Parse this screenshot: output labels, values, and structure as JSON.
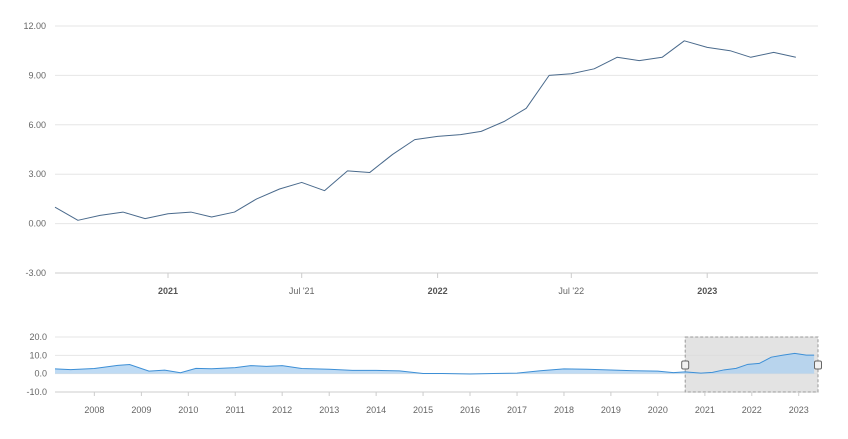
{
  "colors": {
    "main_line": "#4a6a8c",
    "grid": "#e6e6e6",
    "nav_fill": "#a9cff0",
    "nav_line": "#3d8fd6",
    "mask_fill": "#dcdcdc",
    "mask_border": "#999999"
  },
  "chart_data": [
    {
      "type": "line",
      "x_type": "datetime",
      "ylim": [
        -3,
        12
      ],
      "yticks": [
        "12.00",
        "9.00",
        "6.00",
        "3.00",
        "0.00",
        "-3.00"
      ],
      "xticks": [
        {
          "date": "2021-01-01",
          "label": "2021",
          "bold": true
        },
        {
          "date": "2021-07-01",
          "label": "Jul '21",
          "bold": false
        },
        {
          "date": "2022-01-01",
          "label": "2022",
          "bold": true
        },
        {
          "date": "2022-07-01",
          "label": "Jul '22",
          "bold": false
        },
        {
          "date": "2023-01-01",
          "label": "2023",
          "bold": true
        }
      ],
      "xlim": [
        "2020-08-01",
        "2023-05-31"
      ],
      "grid": true,
      "series": [
        {
          "x": [
            "2020-08-01",
            "2020-09-01",
            "2020-10-01",
            "2020-11-01",
            "2020-12-01",
            "2021-01-01",
            "2021-02-01",
            "2021-03-01",
            "2021-04-01",
            "2021-05-01",
            "2021-06-01",
            "2021-07-01",
            "2021-08-01",
            "2021-09-01",
            "2021-10-01",
            "2021-11-01",
            "2021-12-01",
            "2022-01-01",
            "2022-02-01",
            "2022-03-01",
            "2022-04-01",
            "2022-05-01",
            "2022-06-01",
            "2022-07-01",
            "2022-08-01",
            "2022-09-01",
            "2022-10-01",
            "2022-11-01",
            "2022-12-01",
            "2023-01-01",
            "2023-02-01",
            "2023-03-01",
            "2023-04-01",
            "2023-05-01"
          ],
          "values": [
            1.0,
            0.2,
            0.5,
            0.7,
            0.3,
            0.6,
            0.7,
            0.4,
            0.7,
            1.5,
            2.1,
            2.5,
            2.0,
            3.2,
            3.1,
            4.2,
            5.1,
            5.3,
            5.4,
            5.6,
            6.2,
            7.0,
            9.0,
            9.1,
            9.4,
            10.1,
            9.9,
            10.1,
            11.1,
            10.7,
            10.5,
            10.1,
            10.4,
            10.1
          ]
        }
      ]
    },
    {
      "type": "area",
      "x_type": "datetime",
      "role": "navigator",
      "ylim": [
        -10,
        20
      ],
      "yticks": [
        "20.0",
        "10.0",
        "0.0",
        "-10.0"
      ],
      "xticks": [
        "2008",
        "2009",
        "2010",
        "2011",
        "2012",
        "2013",
        "2014",
        "2015",
        "2016",
        "2017",
        "2018",
        "2019",
        "2020",
        "2021",
        "2022",
        "2023"
      ],
      "xlim": [
        "2007-03-01",
        "2023-05-31"
      ],
      "selection": [
        "2020-08-01",
        "2023-05-31"
      ],
      "series": [
        {
          "x": [
            "2007-03-01",
            "2007-07-01",
            "2008-01-01",
            "2008-07-01",
            "2008-10-01",
            "2009-03-01",
            "2009-07-01",
            "2009-11-01",
            "2010-03-01",
            "2010-07-01",
            "2011-01-01",
            "2011-05-01",
            "2011-09-01",
            "2012-01-01",
            "2012-06-01",
            "2013-01-01",
            "2013-07-01",
            "2014-01-01",
            "2014-07-01",
            "2015-01-01",
            "2015-06-01",
            "2016-01-01",
            "2016-07-01",
            "2017-01-01",
            "2017-07-01",
            "2018-01-01",
            "2018-07-01",
            "2019-01-01",
            "2019-07-01",
            "2020-01-01",
            "2020-05-01",
            "2020-08-01",
            "2020-12-01",
            "2021-03-01",
            "2021-06-01",
            "2021-09-01",
            "2021-12-01",
            "2022-03-01",
            "2022-06-01",
            "2022-09-01",
            "2022-12-01",
            "2023-03-01",
            "2023-05-01"
          ],
          "values": [
            2.6,
            2.2,
            2.8,
            4.5,
            5.0,
            1.4,
            1.9,
            0.5,
            2.9,
            2.7,
            3.3,
            4.4,
            4.0,
            4.4,
            2.8,
            2.4,
            1.8,
            1.8,
            1.5,
            0.1,
            0.1,
            -0.2,
            0.1,
            0.3,
            1.6,
            2.6,
            2.4,
            2.0,
            1.6,
            1.4,
            0.6,
            1.0,
            0.3,
            0.7,
            2.1,
            2.9,
            5.1,
            5.6,
            9.0,
            10.1,
            11.1,
            10.1,
            10.1
          ]
        }
      ]
    }
  ]
}
